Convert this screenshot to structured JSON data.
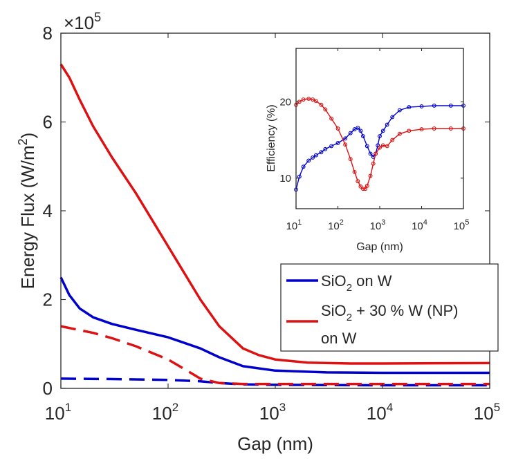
{
  "chart_data": [
    {
      "type": "line",
      "xscale": "log",
      "xlim": [
        10,
        100000
      ],
      "ylim": [
        0,
        800000
      ],
      "xlabel": "Gap (nm)",
      "ylabel_prefix": "Energy Flux (W/m",
      "ylabel_sup": "2",
      "ylabel_suffix": ")",
      "y_exponent_label": "×10",
      "y_exponent_sup": "5",
      "xticks": [
        10,
        100,
        1000,
        10000,
        100000
      ],
      "xtick_bases": [
        "10",
        "10",
        "10",
        "10",
        "10"
      ],
      "xtick_sups": [
        "1",
        "2",
        "3",
        "4",
        "5"
      ],
      "yticks": [
        0,
        200000,
        400000,
        600000,
        800000
      ],
      "ytick_labels": [
        "0",
        "2",
        "4",
        "6",
        "8"
      ],
      "legend": {
        "position": "inside-right",
        "entries": [
          {
            "series": 0,
            "pre": "SiO",
            "sub": "2",
            "post": " on W",
            "line2": ""
          },
          {
            "series": 1,
            "pre": "SiO",
            "sub": "2",
            "post": " + 30 % W (NP)",
            "line2": "on W"
          }
        ]
      },
      "series": [
        {
          "name": "SiO2 on W (solid)",
          "color": "#0000cc",
          "dash": "solid",
          "legend": true,
          "x": [
            10,
            12,
            15,
            20,
            30,
            50,
            100,
            200,
            300,
            500,
            1000,
            3000,
            10000,
            100000
          ],
          "y": [
            250000,
            210000,
            180000,
            160000,
            145000,
            132000,
            115000,
            90000,
            70000,
            50000,
            40000,
            36000,
            35000,
            35000
          ]
        },
        {
          "name": "SiO2 + 30 % W (NP) on W (solid)",
          "color": "#dd1111",
          "dash": "solid",
          "legend": true,
          "x": [
            10,
            12,
            15,
            20,
            30,
            50,
            100,
            200,
            300,
            500,
            700,
            1000,
            2000,
            5000,
            10000,
            100000
          ],
          "y": [
            730000,
            700000,
            650000,
            590000,
            520000,
            440000,
            320000,
            200000,
            140000,
            90000,
            75000,
            65000,
            58000,
            56000,
            56000,
            57000
          ]
        },
        {
          "name": "SiO2 on W (dashed)",
          "color": "#0000cc",
          "dash": "dashed",
          "legend": false,
          "x": [
            10,
            30,
            100,
            200,
            300,
            500,
            1000,
            10000,
            100000
          ],
          "y": [
            22000,
            21000,
            19000,
            16000,
            12000,
            9000,
            8000,
            7000,
            7000
          ]
        },
        {
          "name": "SiO2 + 30 % W (NP) on W (dashed)",
          "color": "#dd1111",
          "dash": "dashed",
          "legend": false,
          "x": [
            10,
            20,
            30,
            50,
            100,
            150,
            200,
            300,
            500,
            1000,
            10000,
            100000
          ],
          "y": [
            140000,
            125000,
            113000,
            95000,
            65000,
            40000,
            22000,
            12000,
            10000,
            10000,
            10000,
            10000
          ]
        }
      ]
    },
    {
      "type": "line",
      "role": "inset",
      "xscale": "log",
      "xlim": [
        10,
        100000
      ],
      "ylim": [
        6,
        27
      ],
      "xlabel": "Gap (nm)",
      "ylabel": "Efficiency (%)",
      "xticks": [
        10,
        100,
        1000,
        10000,
        100000
      ],
      "xtick_bases": [
        "10",
        "10",
        "10",
        "10",
        "10"
      ],
      "xtick_sups": [
        "1",
        "2",
        "3",
        "4",
        "5"
      ],
      "yticks": [
        10,
        20
      ],
      "ytick_labels": [
        "10",
        "20"
      ],
      "series": [
        {
          "name": "SiO2 on W",
          "color": "#0000cc",
          "marker": "circle",
          "x": [
            10,
            12,
            15,
            20,
            25,
            30,
            40,
            50,
            70,
            100,
            150,
            200,
            250,
            300,
            350,
            400,
            500,
            600,
            700,
            800,
            900,
            1000,
            1200,
            1500,
            2000,
            3000,
            5000,
            10000,
            20000,
            50000,
            100000
          ],
          "y": [
            8.5,
            10.2,
            11.5,
            12.3,
            12.7,
            13.0,
            13.4,
            13.8,
            14.2,
            14.6,
            15.2,
            15.9,
            16.4,
            16.6,
            16.2,
            15.5,
            14.2,
            13.2,
            12.8,
            13.2,
            14.3,
            15.5,
            16.2,
            17.0,
            18.0,
            18.9,
            19.3,
            19.4,
            19.5,
            19.5,
            19.5
          ]
        },
        {
          "name": "SiO2 + 30 % W (NP) on W",
          "color": "#dd1111",
          "marker": "circle",
          "x": [
            10,
            12,
            15,
            20,
            25,
            30,
            40,
            50,
            70,
            100,
            150,
            200,
            250,
            300,
            350,
            400,
            450,
            500,
            600,
            700,
            800,
            1000,
            1200,
            1500,
            2000,
            3000,
            5000,
            10000,
            20000,
            50000,
            100000
          ],
          "y": [
            19.6,
            20.0,
            20.3,
            20.4,
            20.3,
            20.1,
            19.6,
            19.0,
            17.8,
            16.5,
            14.4,
            12.5,
            10.8,
            9.6,
            8.9,
            8.6,
            8.6,
            9.0,
            10.3,
            11.9,
            13.2,
            14.0,
            14.3,
            14.2,
            15.0,
            15.8,
            16.2,
            16.4,
            16.5,
            16.5,
            16.5
          ]
        }
      ]
    }
  ]
}
